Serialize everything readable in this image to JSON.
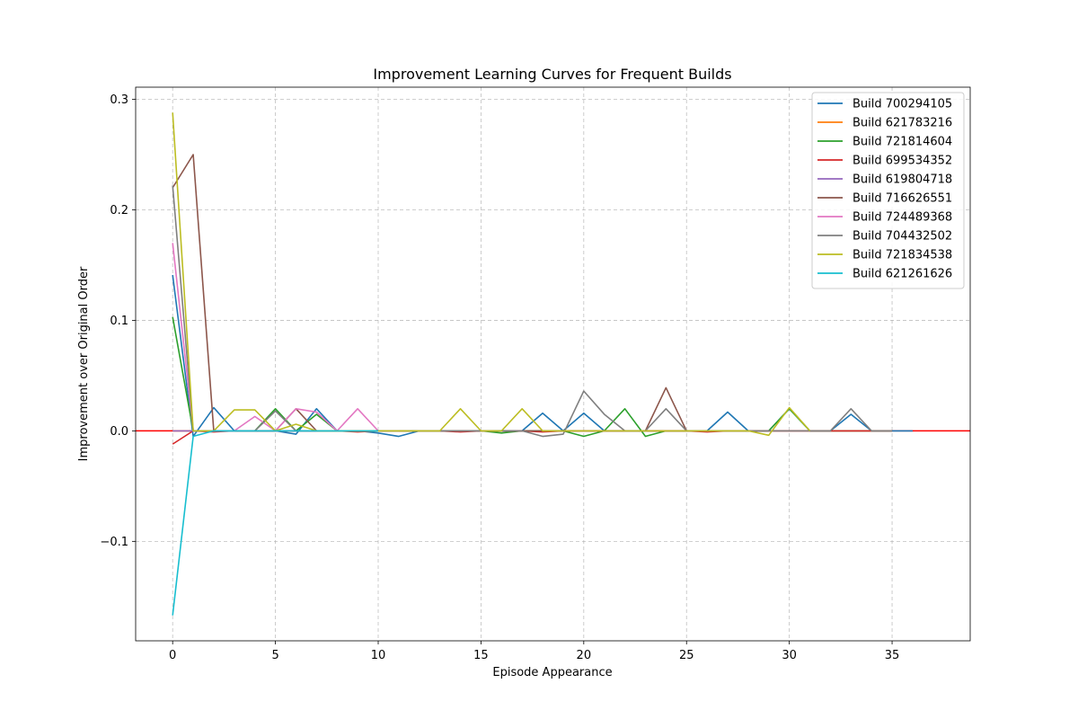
{
  "chart_data": {
    "type": "line",
    "title": "Improvement Learning Curves for Frequent Builds",
    "xlabel": "Episode Appearance",
    "ylabel": "Improvement over Original Order",
    "xlim": [
      -1.8,
      38.8
    ],
    "ylim": [
      -0.19,
      0.311
    ],
    "xticks": [
      0,
      5,
      10,
      15,
      20,
      25,
      30,
      35
    ],
    "yticks": [
      -0.1,
      0.0,
      0.1,
      0.2,
      0.3
    ],
    "xtick_labels": [
      "0",
      "5",
      "10",
      "15",
      "20",
      "25",
      "30",
      "35"
    ],
    "ytick_labels": [
      "−0.1",
      "0.0",
      "0.1",
      "0.2",
      "0.3"
    ],
    "grid": true,
    "legend_position": "top-right",
    "reference_line": {
      "y": 0,
      "color": "#ff0000"
    },
    "series": [
      {
        "name": "Build 700294105",
        "color": "#1f77b4",
        "x": [
          0,
          1,
          2,
          3,
          4,
          5,
          6,
          7,
          8,
          9,
          10,
          11,
          12,
          13,
          14,
          15,
          16,
          17,
          18,
          19,
          20,
          21,
          22,
          23,
          24,
          25,
          26,
          27,
          28,
          29,
          30,
          31,
          32,
          33,
          34,
          35,
          36
        ],
        "y": [
          0.141,
          -0.005,
          0.021,
          0.0,
          0.0,
          0.0,
          -0.003,
          0.02,
          0.0,
          0.0,
          -0.002,
          -0.005,
          0.0,
          0.0,
          0.0,
          0.0,
          0.0,
          0.0,
          0.016,
          0.0,
          0.016,
          0.0,
          0.0,
          0.0,
          0.0,
          0.0,
          0.0,
          0.017,
          0.0,
          0.0,
          0.02,
          0.0,
          0.0,
          0.015,
          0.0,
          0.0,
          0.0
        ]
      },
      {
        "name": "Build 621783216",
        "color": "#ff7f0e",
        "x": [
          0,
          1,
          2,
          3,
          4,
          5,
          6,
          7,
          8,
          9,
          10
        ],
        "y": [
          0.0,
          0.0,
          0.0,
          0.0,
          0.0,
          0.0,
          0.0,
          0.0,
          0.0,
          0.0,
          0.0
        ]
      },
      {
        "name": "Build 721814604",
        "color": "#2ca02c",
        "x": [
          0,
          1,
          2,
          3,
          4,
          5,
          6,
          7,
          8,
          9,
          10,
          11,
          12,
          13,
          14,
          15,
          16,
          17,
          18,
          19,
          20,
          21,
          22,
          23,
          24,
          25,
          26,
          27,
          28,
          29,
          30,
          31,
          32,
          33,
          34,
          35
        ],
        "y": [
          0.103,
          0.0,
          0.0,
          0.0,
          0.0,
          0.02,
          0.0,
          0.015,
          0.0,
          0.0,
          0.0,
          0.0,
          0.0,
          0.0,
          0.0,
          0.0,
          -0.002,
          0.0,
          0.0,
          0.0,
          -0.005,
          0.0,
          0.02,
          -0.005,
          0.0,
          0.0,
          0.0,
          0.0,
          0.0,
          0.0,
          0.02,
          0.0,
          0.0,
          0.0,
          0.0,
          0.0
        ]
      },
      {
        "name": "Build 699534352",
        "color": "#d62728",
        "x": [
          0,
          1,
          2,
          3,
          4,
          5,
          6,
          7,
          8,
          9,
          10,
          11,
          12,
          13,
          14,
          15,
          16,
          17,
          18,
          19,
          20,
          21,
          22,
          23,
          24,
          25,
          26,
          27,
          28,
          29,
          30,
          31,
          32,
          33,
          34,
          35
        ],
        "y": [
          -0.012,
          0.0,
          -0.001,
          0.0,
          0.0,
          0.0,
          0.0,
          0.0,
          0.0,
          -0.001,
          0.0,
          0.0,
          0.0,
          0.0,
          -0.001,
          0.0,
          0.0,
          0.0,
          -0.001,
          0.0,
          0.0,
          0.0,
          0.0,
          0.0,
          0.0,
          0.0,
          -0.001,
          0.0,
          0.0,
          0.0,
          0.0,
          0.0,
          0.0,
          0.0,
          0.0,
          0.0
        ]
      },
      {
        "name": "Build 619804718",
        "color": "#9467bd",
        "x": [
          0,
          1,
          2,
          3,
          4,
          5,
          6,
          7,
          8,
          9,
          10
        ],
        "y": [
          0.0,
          0.0,
          0.0,
          0.0,
          0.0,
          0.0,
          0.0,
          0.0,
          0.0,
          0.0,
          0.0
        ]
      },
      {
        "name": "Build 716626551",
        "color": "#8c564b",
        "x": [
          0,
          1,
          2,
          3,
          4,
          5,
          6,
          7,
          8,
          9,
          10,
          11,
          12,
          13,
          14,
          15,
          16,
          17,
          18,
          19,
          20,
          21,
          22,
          23,
          24,
          25
        ],
        "y": [
          0.22,
          0.25,
          0.0,
          0.0,
          0.0,
          0.0,
          0.02,
          0.0,
          0.0,
          0.0,
          0.0,
          0.0,
          0.0,
          0.0,
          0.0,
          0.0,
          0.0,
          0.0,
          0.0,
          0.0,
          0.0,
          0.0,
          0.0,
          0.0,
          0.039,
          0.0
        ]
      },
      {
        "name": "Build 724489368",
        "color": "#e377c2",
        "x": [
          0,
          1,
          2,
          3,
          4,
          5,
          6,
          7,
          8,
          9,
          10,
          11
        ],
        "y": [
          0.17,
          0.0,
          0.0,
          0.0,
          0.013,
          0.0,
          0.02,
          0.017,
          0.0,
          0.02,
          0.0,
          0.0
        ]
      },
      {
        "name": "Build 704432502",
        "color": "#7f7f7f",
        "x": [
          0,
          1,
          2,
          3,
          4,
          5,
          6,
          7,
          8,
          9,
          10,
          11,
          12,
          13,
          14,
          15,
          16,
          17,
          18,
          19,
          20,
          21,
          22,
          23,
          24,
          25,
          26,
          27,
          28,
          29,
          30,
          31,
          32,
          33,
          34,
          35
        ],
        "y": [
          0.222,
          0.0,
          0.0,
          0.0,
          0.0,
          0.018,
          0.0,
          0.0,
          0.0,
          0.0,
          0.0,
          0.0,
          0.0,
          0.0,
          0.0,
          0.0,
          0.0,
          0.0,
          -0.005,
          -0.003,
          0.036,
          0.015,
          0.0,
          0.0,
          0.02,
          0.0,
          0.0,
          0.0,
          0.0,
          0.0,
          0.0,
          0.0,
          0.0,
          0.02,
          0.0,
          0.0
        ]
      },
      {
        "name": "Build 721834538",
        "color": "#bcbd22",
        "x": [
          0,
          1,
          2,
          3,
          4,
          5,
          6,
          7,
          8,
          9,
          10,
          11,
          12,
          13,
          14,
          15,
          16,
          17,
          18,
          19,
          20,
          21,
          22,
          23,
          24,
          25,
          26,
          27,
          28,
          29,
          30,
          31
        ],
        "y": [
          0.288,
          0.0,
          0.0,
          0.019,
          0.019,
          0.0,
          0.006,
          0.0,
          0.0,
          0.0,
          0.0,
          0.0,
          0.0,
          0.0,
          0.02,
          0.0,
          0.0,
          0.02,
          0.0,
          0.0,
          0.0,
          0.0,
          0.0,
          0.0,
          0.0,
          0.0,
          0.0,
          0.0,
          0.0,
          -0.004,
          0.021,
          0.0
        ]
      },
      {
        "name": "Build 621261626",
        "color": "#17becf",
        "x": [
          0,
          1,
          2,
          3,
          4,
          5,
          6,
          7,
          8,
          9,
          10
        ],
        "y": [
          -0.167,
          -0.005,
          0.0,
          0.0,
          0.0,
          0.0,
          0.0,
          0.0,
          0.0,
          0.0,
          0.0
        ]
      }
    ]
  }
}
